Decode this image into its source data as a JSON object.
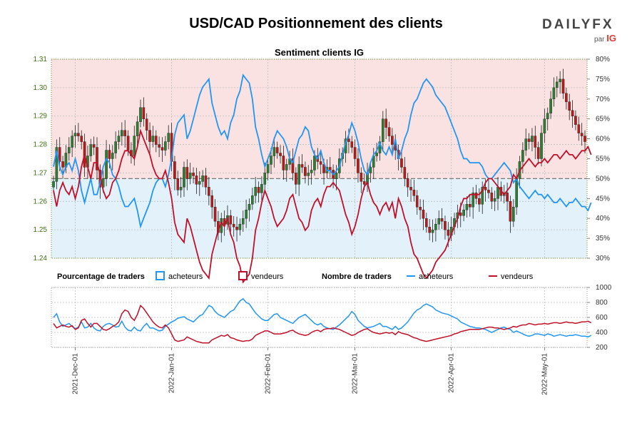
{
  "header": {
    "title": "USD/CAD Positionnement des clients",
    "brand": "DAILYFX",
    "brand_by": "par",
    "brand_ig": "IG"
  },
  "colors": {
    "buyers": "#2196f3",
    "sellers": "#c0102a",
    "bull": "#2e7d32",
    "bear": "#b71c1c",
    "grid": "#bbbbbb",
    "axis_left": "#3f6f12"
  },
  "chart_data": [
    {
      "type": "candlestick",
      "title": "Sentiment clients IG",
      "ylim_price": [
        1.24,
        1.31
      ],
      "price_ticks": [
        "1.24",
        "1.25",
        "1.26",
        "1.27",
        "1.28",
        "1.29",
        "1.30",
        "1.31"
      ],
      "ylim_pct": [
        30,
        80
      ],
      "pct_ticks": [
        "30%",
        "35%",
        "40%",
        "45%",
        "50%",
        "55%",
        "60%",
        "65%",
        "70%",
        "75%",
        "80%"
      ],
      "x_labels": [
        "2021-Dec-01",
        "2022-Jan-01",
        "2022-Feb-01",
        "2022-Mar-01",
        "2022-Apr-01",
        "2022-May-01"
      ],
      "x_label_index": [
        7,
        38,
        69,
        97,
        128,
        158
      ],
      "close": [
        1.267,
        1.279,
        1.274,
        1.272,
        1.277,
        1.279,
        1.283,
        1.284,
        1.283,
        1.281,
        1.272,
        1.276,
        1.28,
        1.279,
        1.271,
        1.265,
        1.268,
        1.278,
        1.275,
        1.277,
        1.281,
        1.283,
        1.285,
        1.283,
        1.278,
        1.276,
        1.283,
        1.288,
        1.293,
        1.289,
        1.285,
        1.281,
        1.283,
        1.28,
        1.279,
        1.278,
        1.281,
        1.284,
        1.274,
        1.268,
        1.264,
        1.265,
        1.272,
        1.268,
        1.27,
        1.269,
        1.266,
        1.267,
        1.269,
        1.265,
        1.262,
        1.258,
        1.253,
        1.249,
        1.254,
        1.252,
        1.255,
        1.252,
        1.251,
        1.25,
        1.252,
        1.254,
        1.257,
        1.259,
        1.262,
        1.265,
        1.263,
        1.266,
        1.27,
        1.273,
        1.276,
        1.279,
        1.277,
        1.276,
        1.271,
        1.273,
        1.275,
        1.27,
        1.266,
        1.273,
        1.272,
        1.269,
        1.27,
        1.271,
        1.276,
        1.274,
        1.273,
        1.27,
        1.272,
        1.271,
        1.268,
        1.27,
        1.275,
        1.277,
        1.282,
        1.281,
        1.279,
        1.275,
        1.27,
        1.267,
        1.266,
        1.27,
        1.272,
        1.276,
        1.277,
        1.281,
        1.289,
        1.286,
        1.283,
        1.28,
        1.278,
        1.275,
        1.272,
        1.268,
        1.265,
        1.264,
        1.262,
        1.258,
        1.257,
        1.254,
        1.251,
        1.249,
        1.25,
        1.252,
        1.254,
        1.253,
        1.25,
        1.248,
        1.251,
        1.254,
        1.256,
        1.255,
        1.257,
        1.259,
        1.258,
        1.263,
        1.261,
        1.259,
        1.265,
        1.264,
        1.263,
        1.26,
        1.261,
        1.265,
        1.262,
        1.263,
        1.26,
        1.253,
        1.258,
        1.268,
        1.274,
        1.278,
        1.282,
        1.281,
        1.283,
        1.279,
        1.275,
        1.284,
        1.289,
        1.291,
        1.296,
        1.3,
        1.302,
        1.303,
        1.298,
        1.295,
        1.292,
        1.29,
        1.287,
        1.284,
        1.283,
        1.281
      ]
    },
    {
      "type": "line",
      "series": [
        {
          "name": "acheteurs",
          "axis": "pct",
          "values": [
            53,
            57,
            53,
            51,
            53,
            54,
            52,
            55,
            52,
            47,
            44,
            47,
            50,
            46,
            46,
            49,
            53,
            55,
            54,
            51,
            50,
            48,
            45,
            43,
            43,
            44,
            45,
            42,
            38,
            40,
            42,
            44,
            47,
            49,
            50,
            50,
            48,
            51,
            55,
            61,
            64,
            65,
            66,
            60,
            62,
            65,
            68,
            71,
            73,
            74,
            75,
            69,
            66,
            63,
            61,
            62,
            60,
            64,
            66,
            70,
            72,
            76,
            75,
            74,
            70,
            63,
            60,
            56,
            53,
            55,
            57,
            60,
            62,
            61,
            60,
            58,
            55,
            54,
            57,
            60,
            61,
            63,
            62,
            58,
            56,
            55,
            57,
            54,
            52,
            52,
            51,
            52,
            53,
            56,
            59,
            61,
            64,
            62,
            59,
            55,
            52,
            51,
            54,
            56,
            57,
            59,
            57,
            56,
            58,
            56,
            60,
            55,
            57,
            60,
            62,
            66,
            69,
            70,
            72,
            74,
            75,
            74,
            73,
            71,
            70,
            69,
            68,
            66,
            64,
            62,
            60,
            57,
            55,
            55,
            54,
            54,
            54,
            54,
            53,
            51,
            50,
            50,
            51,
            52,
            53,
            54,
            53,
            52,
            49,
            50,
            48,
            47,
            46,
            45,
            46,
            47,
            46,
            46,
            45,
            46,
            45,
            44,
            44,
            45,
            44,
            43,
            44,
            44,
            45,
            44,
            43,
            43,
            42,
            44
          ]
        },
        {
          "name": "vendeurs",
          "axis": "pct",
          "values": [
            47,
            43,
            47,
            49,
            47,
            46,
            48,
            45,
            48,
            53,
            56,
            53,
            50,
            54,
            54,
            51,
            47,
            45,
            46,
            49,
            50,
            52,
            55,
            57,
            57,
            56,
            55,
            58,
            62,
            60,
            58,
            56,
            53,
            51,
            50,
            50,
            52,
            49,
            45,
            39,
            36,
            35,
            34,
            40,
            38,
            35,
            32,
            29,
            27,
            26,
            25,
            31,
            34,
            37,
            39,
            38,
            40,
            36,
            34,
            30,
            28,
            24,
            25,
            26,
            30,
            37,
            40,
            44,
            47,
            45,
            43,
            40,
            38,
            39,
            40,
            42,
            45,
            46,
            43,
            40,
            39,
            37,
            38,
            42,
            44,
            45,
            43,
            46,
            48,
            48,
            49,
            48,
            47,
            44,
            41,
            39,
            36,
            38,
            41,
            45,
            48,
            49,
            46,
            44,
            43,
            41,
            43,
            44,
            42,
            44,
            40,
            45,
            43,
            40,
            38,
            34,
            31,
            30,
            28,
            26,
            25,
            26,
            27,
            29,
            30,
            31,
            32,
            34,
            36,
            38,
            40,
            43,
            45,
            45,
            46,
            46,
            46,
            46,
            47,
            49,
            50,
            50,
            49,
            48,
            47,
            46,
            47,
            48,
            51,
            50,
            52,
            53,
            54,
            55,
            54,
            53,
            54,
            54,
            55,
            54,
            55,
            56,
            56,
            55,
            56,
            57,
            56,
            56,
            55,
            56,
            57,
            57,
            58,
            56
          ]
        }
      ]
    },
    {
      "type": "line",
      "ylim": [
        200,
        1000
      ],
      "ticks": [
        "200",
        "400",
        "600",
        "800",
        "1000"
      ],
      "series": [
        {
          "name": "acheteurs",
          "values": [
            600,
            650,
            540,
            480,
            500,
            520,
            480,
            450,
            470,
            540,
            460,
            470,
            520,
            460,
            430,
            420,
            480,
            510,
            520,
            500,
            470,
            480,
            550,
            470,
            430,
            420,
            470,
            430,
            420,
            480,
            520,
            460,
            460,
            440,
            420,
            430,
            480,
            510,
            540,
            560,
            590,
            600,
            610,
            580,
            560,
            540,
            580,
            620,
            640,
            700,
            760,
            740,
            680,
            640,
            620,
            600,
            640,
            680,
            700,
            760,
            820,
            850,
            800,
            780,
            720,
            660,
            620,
            580,
            560,
            560,
            600,
            640,
            650,
            600,
            580,
            560,
            540,
            520,
            560,
            600,
            620,
            640,
            600,
            560,
            520,
            500,
            520,
            480,
            460,
            450,
            440,
            470,
            500,
            540,
            580,
            620,
            680,
            640,
            560,
            520,
            480,
            460,
            470,
            480,
            500,
            520,
            480,
            480,
            460,
            440,
            480,
            440,
            460,
            500,
            540,
            600,
            660,
            700,
            720,
            760,
            780,
            760,
            740,
            700,
            680,
            660,
            650,
            640,
            620,
            600,
            580,
            540,
            520,
            500,
            480,
            470,
            460,
            460,
            450,
            440,
            420,
            400,
            420,
            440,
            460,
            470,
            450,
            440,
            400,
            420,
            400,
            380,
            360,
            350,
            360,
            380,
            380,
            370,
            360,
            380,
            370,
            350,
            360,
            370,
            360,
            350,
            360,
            360,
            370,
            360,
            350,
            350,
            340,
            360
          ]
        },
        {
          "name": "vendeurs",
          "values": [
            520,
            460,
            480,
            500,
            480,
            470,
            490,
            440,
            460,
            560,
            580,
            520,
            470,
            520,
            520,
            480,
            440,
            430,
            450,
            480,
            500,
            540,
            650,
            700,
            680,
            600,
            560,
            640,
            760,
            720,
            660,
            600,
            540,
            500,
            470,
            460,
            500,
            460,
            380,
            300,
            280,
            290,
            300,
            340,
            320,
            300,
            280,
            270,
            260,
            260,
            260,
            300,
            320,
            340,
            360,
            350,
            370,
            330,
            320,
            300,
            290,
            280,
            290,
            290,
            310,
            360,
            380,
            400,
            420,
            420,
            400,
            380,
            380,
            380,
            390,
            400,
            420,
            430,
            400,
            380,
            370,
            360,
            370,
            400,
            420,
            430,
            410,
            440,
            450,
            450,
            460,
            450,
            440,
            420,
            400,
            380,
            360,
            370,
            400,
            420,
            440,
            450,
            420,
            400,
            390,
            380,
            390,
            400,
            390,
            400,
            370,
            410,
            390,
            380,
            370,
            350,
            330,
            320,
            300,
            290,
            280,
            290,
            300,
            310,
            320,
            330,
            340,
            350,
            360,
            380,
            390,
            410,
            420,
            430,
            440,
            440,
            440,
            440,
            450,
            460,
            470,
            470,
            460,
            460,
            450,
            440,
            450,
            460,
            480,
            470,
            490,
            500,
            500,
            520,
            510,
            500,
            510,
            510,
            520,
            510,
            520,
            530,
            530,
            520,
            530,
            540,
            530,
            530,
            520,
            530,
            540,
            540,
            550,
            530
          ]
        }
      ]
    }
  ],
  "legend": {
    "pct_heading": "Pourcentage de traders",
    "pct_buyers": "acheteurs",
    "pct_sellers": "vendeurs",
    "count_heading": "Nombre de traders",
    "count_buyers": "acheteurs",
    "count_sellers": "vendeurs"
  }
}
